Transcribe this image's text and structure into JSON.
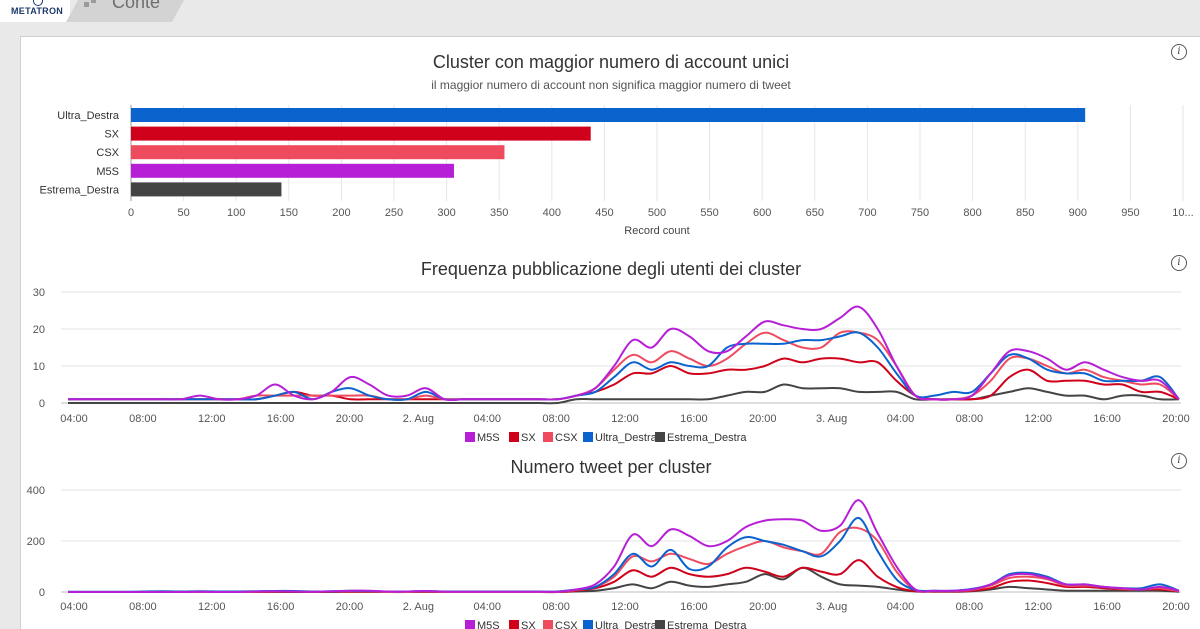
{
  "app": {
    "logo_text": "METATRON",
    "breadcrumb": "Conte"
  },
  "info_glyph": "i",
  "colors": {
    "M5S": "#b61fd6",
    "SX": "#d0021b",
    "CSX": "#ef4b5f",
    "Ultra_Destra": "#0b63ce",
    "Estrema_Destra": "#444444"
  },
  "chart_data": [
    {
      "type": "bar",
      "orientation": "horizontal",
      "title": "Cluster con maggior numero di account unici",
      "subtitle": "il maggior numero di account non significa maggior numero di tweet",
      "categories": [
        "Ultra_Destra",
        "SX",
        "CSX",
        "M5S",
        "Estrema_Destra"
      ],
      "values": [
        907,
        437,
        355,
        307,
        143
      ],
      "xlabel": "Record count",
      "xlim": [
        0,
        1000
      ],
      "xticks": [
        "0",
        "50",
        "100",
        "150",
        "200",
        "250",
        "300",
        "350",
        "400",
        "450",
        "500",
        "550",
        "600",
        "650",
        "700",
        "750",
        "800",
        "850",
        "900",
        "950",
        "10..."
      ],
      "grid": true
    },
    {
      "type": "line",
      "title": "Frequenza pubblicazione degli utenti dei cluster",
      "x_ticks": [
        "04:00",
        "08:00",
        "12:00",
        "16:00",
        "20:00",
        "2. Aug",
        "04:00",
        "08:00",
        "12:00",
        "16:00",
        "20:00",
        "3. Aug",
        "04:00",
        "08:00",
        "12:00",
        "16:00",
        "20:00"
      ],
      "ylim": [
        0,
        30
      ],
      "y_ticks": [
        "0",
        "10",
        "20",
        "30"
      ],
      "legend": "bottom",
      "series": [
        {
          "name": "M5S",
          "values": [
            1,
            1,
            1,
            1,
            1,
            1,
            1,
            2,
            1,
            1,
            2,
            5,
            2,
            1,
            3,
            7,
            5,
            2,
            2,
            4,
            1,
            1,
            1,
            1,
            1,
            1,
            1,
            2,
            4,
            10,
            17,
            15,
            20,
            18,
            14,
            14,
            18,
            22,
            21,
            20,
            20,
            23,
            26,
            20,
            10,
            2,
            1,
            1,
            2,
            8,
            14,
            14,
            12,
            9,
            11,
            9,
            7,
            6,
            6,
            1
          ]
        },
        {
          "name": "SX",
          "values": [
            1,
            1,
            1,
            1,
            1,
            1,
            1,
            1,
            1,
            1,
            1,
            2,
            3,
            2,
            2,
            1,
            1,
            1,
            1,
            1,
            1,
            1,
            1,
            1,
            1,
            1,
            1,
            2,
            3,
            5,
            8,
            8,
            10,
            8,
            8,
            9,
            9,
            10,
            12,
            11,
            12,
            12,
            11,
            11,
            6,
            2,
            1,
            1,
            1,
            2,
            7,
            9,
            6,
            6,
            6,
            5,
            5,
            3,
            3,
            1
          ]
        },
        {
          "name": "CSX",
          "values": [
            1,
            1,
            1,
            1,
            1,
            1,
            1,
            1,
            1,
            1,
            2,
            2,
            2,
            2,
            2,
            2,
            2,
            1,
            1,
            2,
            1,
            1,
            1,
            1,
            1,
            1,
            1,
            2,
            4,
            9,
            13,
            11,
            14,
            12,
            10,
            12,
            16,
            19,
            17,
            15,
            15,
            19,
            19,
            17,
            10,
            2,
            1,
            1,
            2,
            6,
            12,
            12,
            10,
            8,
            9,
            7,
            6,
            5,
            5,
            1
          ]
        },
        {
          "name": "Ultra_Destra",
          "values": [
            1,
            1,
            1,
            1,
            1,
            1,
            1,
            1,
            1,
            1,
            1,
            2,
            3,
            1,
            3,
            4,
            2,
            1,
            1,
            3,
            1,
            1,
            1,
            1,
            1,
            1,
            1,
            2,
            3,
            7,
            11,
            9,
            11,
            10,
            10,
            15,
            16,
            16,
            16,
            17,
            17,
            18,
            19,
            15,
            8,
            2,
            2,
            3,
            3,
            8,
            13,
            12,
            9,
            8,
            8,
            6,
            6,
            6,
            7,
            1
          ]
        },
        {
          "name": "Estrema_Destra",
          "values": [
            0,
            0,
            0,
            0,
            0,
            0,
            0,
            0,
            0,
            0,
            0,
            0,
            0,
            0,
            0,
            0,
            0,
            0,
            0,
            0,
            0,
            0,
            0,
            0,
            0,
            0,
            0,
            1,
            1,
            1,
            1,
            1,
            1,
            1,
            1,
            2,
            3,
            3,
            5,
            4,
            4,
            4,
            3,
            3,
            3,
            1,
            1,
            1,
            1,
            2,
            3,
            4,
            3,
            2,
            2,
            1,
            2,
            2,
            1,
            1
          ]
        }
      ]
    },
    {
      "type": "line",
      "title": "Numero tweet per cluster",
      "x_ticks": [
        "04:00",
        "08:00",
        "12:00",
        "16:00",
        "20:00",
        "2. Aug",
        "04:00",
        "08:00",
        "12:00",
        "16:00",
        "20:00",
        "3. Aug",
        "04:00",
        "08:00",
        "12:00",
        "16:00",
        "20:00"
      ],
      "ylim": [
        0,
        400
      ],
      "y_ticks": [
        "0",
        "200",
        "400"
      ],
      "legend": "bottom",
      "series": [
        {
          "name": "M5S",
          "values": [
            0,
            0,
            0,
            0,
            0,
            0,
            0,
            1,
            0,
            0,
            2,
            3,
            2,
            1,
            3,
            5,
            5,
            2,
            2,
            4,
            1,
            1,
            1,
            1,
            1,
            1,
            1,
            10,
            30,
            100,
            225,
            180,
            245,
            220,
            180,
            200,
            255,
            280,
            285,
            280,
            240,
            260,
            360,
            230,
            100,
            10,
            5,
            5,
            10,
            30,
            65,
            70,
            55,
            30,
            30,
            20,
            15,
            10,
            20,
            5
          ]
        },
        {
          "name": "SX",
          "values": [
            0,
            0,
            0,
            0,
            0,
            0,
            0,
            0,
            0,
            0,
            0,
            1,
            1,
            1,
            1,
            1,
            1,
            0,
            0,
            1,
            0,
            0,
            0,
            0,
            0,
            0,
            0,
            5,
            15,
            40,
            85,
            60,
            95,
            70,
            60,
            70,
            95,
            80,
            60,
            95,
            80,
            70,
            125,
            60,
            20,
            3,
            2,
            2,
            5,
            15,
            40,
            45,
            35,
            20,
            20,
            15,
            10,
            10,
            10,
            3
          ]
        },
        {
          "name": "CSX",
          "values": [
            0,
            0,
            0,
            0,
            0,
            0,
            0,
            0,
            0,
            0,
            1,
            2,
            2,
            1,
            2,
            2,
            2,
            0,
            0,
            2,
            0,
            0,
            0,
            0,
            0,
            0,
            0,
            8,
            20,
            60,
            140,
            120,
            150,
            130,
            110,
            150,
            180,
            200,
            175,
            160,
            150,
            235,
            250,
            200,
            80,
            8,
            4,
            4,
            8,
            25,
            55,
            60,
            50,
            25,
            25,
            20,
            12,
            10,
            15,
            3
          ]
        },
        {
          "name": "Ultra_Destra",
          "values": [
            1,
            1,
            1,
            1,
            2,
            3,
            2,
            3,
            2,
            2,
            3,
            4,
            4,
            2,
            3,
            5,
            4,
            2,
            2,
            4,
            2,
            2,
            2,
            2,
            2,
            2,
            2,
            10,
            20,
            70,
            150,
            100,
            165,
            90,
            100,
            175,
            215,
            200,
            185,
            160,
            140,
            200,
            290,
            160,
            50,
            8,
            5,
            5,
            12,
            30,
            70,
            75,
            60,
            30,
            30,
            20,
            15,
            15,
            30,
            5
          ]
        },
        {
          "name": "Estrema_Destra",
          "values": [
            0,
            0,
            0,
            0,
            0,
            0,
            0,
            0,
            0,
            0,
            0,
            0,
            0,
            0,
            0,
            0,
            0,
            0,
            0,
            0,
            0,
            0,
            0,
            0,
            0,
            0,
            0,
            2,
            5,
            15,
            30,
            15,
            40,
            25,
            20,
            30,
            40,
            70,
            50,
            95,
            60,
            30,
            25,
            20,
            10,
            2,
            1,
            1,
            3,
            10,
            20,
            15,
            10,
            5,
            5,
            5,
            5,
            5,
            5,
            1
          ]
        }
      ]
    }
  ]
}
